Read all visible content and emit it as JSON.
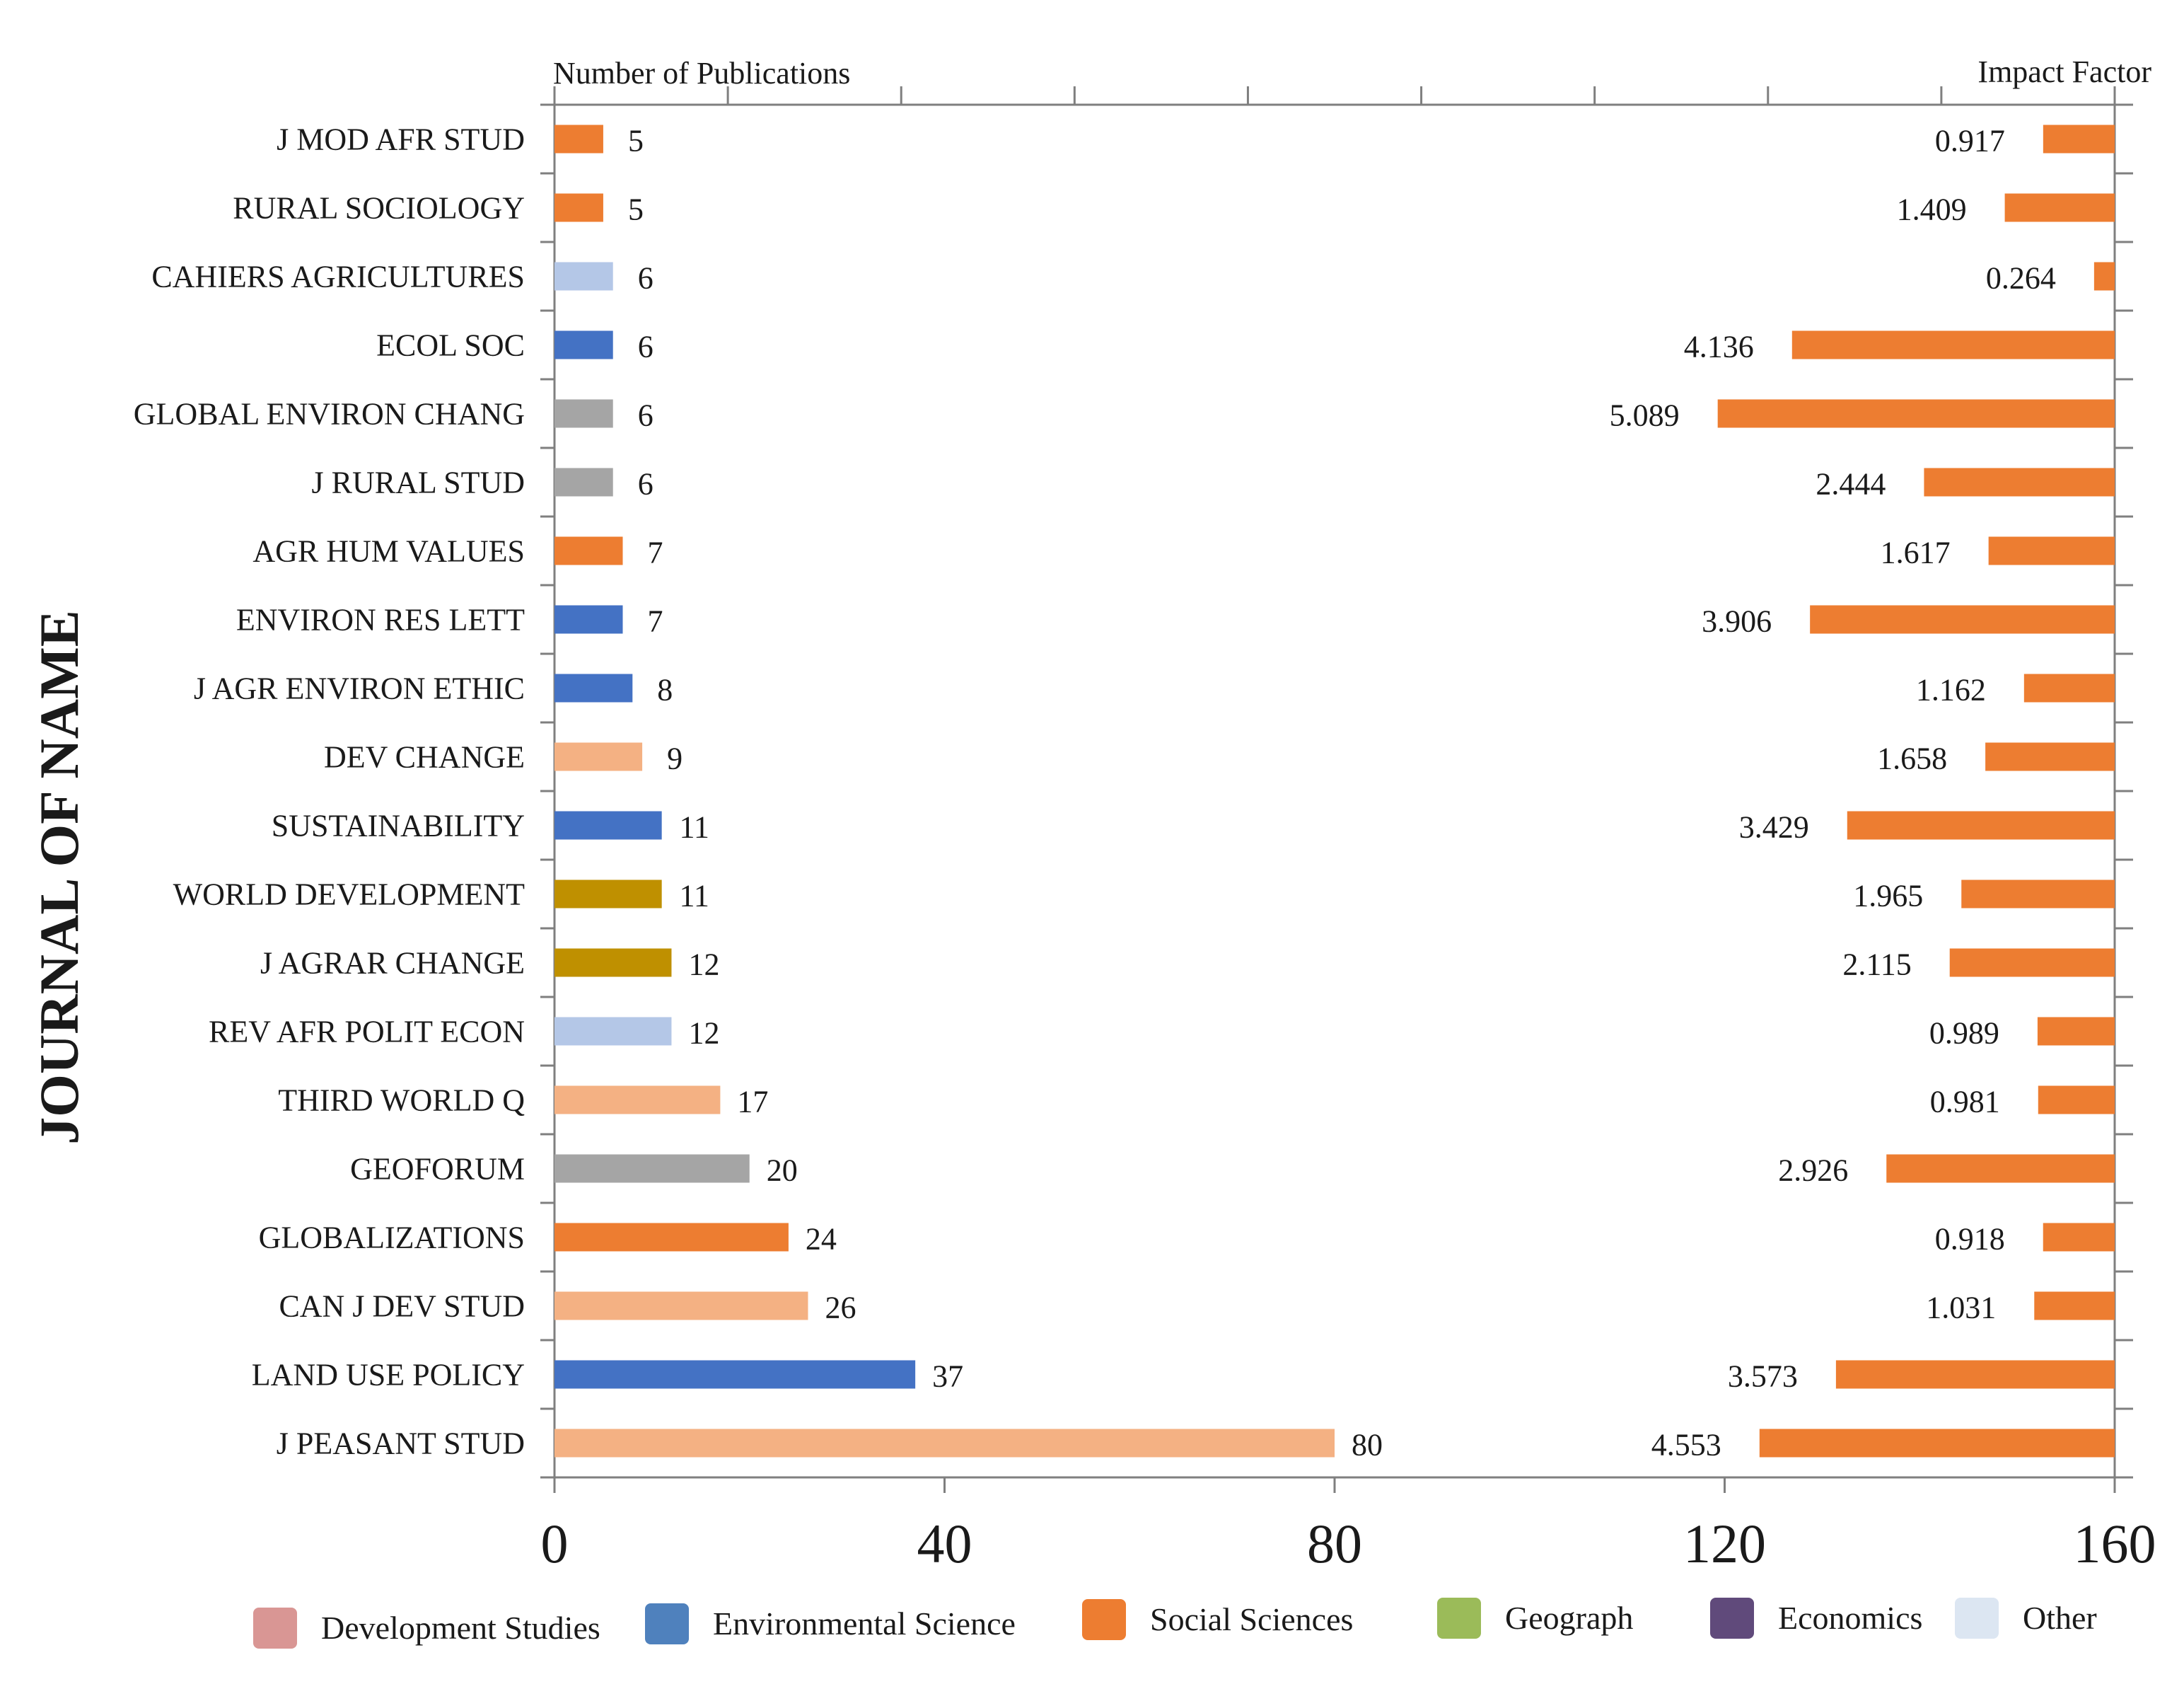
{
  "chart_data": {
    "type": "bar",
    "orientation": "horizontal",
    "ylabel": "JOURNAL OF NAME",
    "left_axis_title": "Number of Publications",
    "right_axis_title": "Impact Factor",
    "xlim": [
      0,
      160
    ],
    "xticks": [
      "0",
      "40",
      "80",
      "120",
      "160"
    ],
    "impact_scale_max": 20,
    "categories": [
      "J MOD AFR STUD",
      "RURAL SOCIOLOGY",
      "CAHIERS AGRICULTURES",
      "ECOL SOC",
      "GLOBAL ENVIRON CHANG",
      "J RURAL STUD",
      "AGR HUM VALUES",
      "ENVIRON RES LETT",
      "J AGR ENVIRON ETHIC",
      "DEV CHANGE",
      "SUSTAINABILITY",
      "WORLD DEVELOPMENT",
      "J AGRAR CHANGE",
      "REV AFR POLIT ECON",
      "THIRD WORLD Q",
      "GEOFORUM",
      "GLOBALIZATIONS",
      "CAN J DEV STUD",
      "LAND USE POLICY",
      "J PEASANT STUD"
    ],
    "publications": {
      "name": "Number of Publications",
      "values": [
        5,
        5,
        6,
        6,
        6,
        6,
        7,
        7,
        8,
        9,
        11,
        11,
        12,
        12,
        17,
        20,
        24,
        26,
        37,
        80
      ],
      "labels": [
        "5",
        "5",
        "6",
        "6",
        "6",
        "6",
        "7",
        "7",
        "8",
        "9",
        "11",
        "11",
        "12",
        "12",
        "17",
        "20",
        "24",
        "26",
        "37",
        "80"
      ],
      "colors": [
        "#ED7D31",
        "#ED7D31",
        "#B4C7E7",
        "#4472C4",
        "#A5A5A5",
        "#A5A5A5",
        "#ED7D31",
        "#4472C4",
        "#4472C4",
        "#F4B183",
        "#4472C4",
        "#BF9000",
        "#BF9000",
        "#B4C7E7",
        "#F4B183",
        "#A5A5A5",
        "#ED7D31",
        "#F4B183",
        "#4472C4",
        "#F4B183"
      ]
    },
    "impact_factor": {
      "name": "Impact Factor",
      "values": [
        0.917,
        1.409,
        0.264,
        4.136,
        5.089,
        2.444,
        1.617,
        3.906,
        1.162,
        1.658,
        3.429,
        1.965,
        2.115,
        0.989,
        0.981,
        2.926,
        0.918,
        1.031,
        3.573,
        4.553
      ],
      "labels": [
        "0.917",
        "1.409",
        "0.264",
        "4.136",
        "5.089",
        "2.444",
        "1.617",
        "3.906",
        "1.162",
        "1.658",
        "3.429",
        "1.965",
        "2.115",
        "0.989",
        "0.981",
        "2.926",
        "0.918",
        "1.031",
        "3.573",
        "4.553"
      ],
      "color": "#ED7D31"
    },
    "legend": [
      {
        "label": "Development Studies",
        "color": "#D99694"
      },
      {
        "label": "Environmental Science",
        "color": "#4F81BD"
      },
      {
        "label": "Social Sciences",
        "color": "#ED7D31"
      },
      {
        "label": "Geograph",
        "color": "#9BBB59"
      },
      {
        "label": "Economics",
        "color": "#604A7B"
      },
      {
        "label": "Other",
        "color": "#DCE6F2"
      }
    ],
    "axis_color": "#7F7F7F"
  }
}
